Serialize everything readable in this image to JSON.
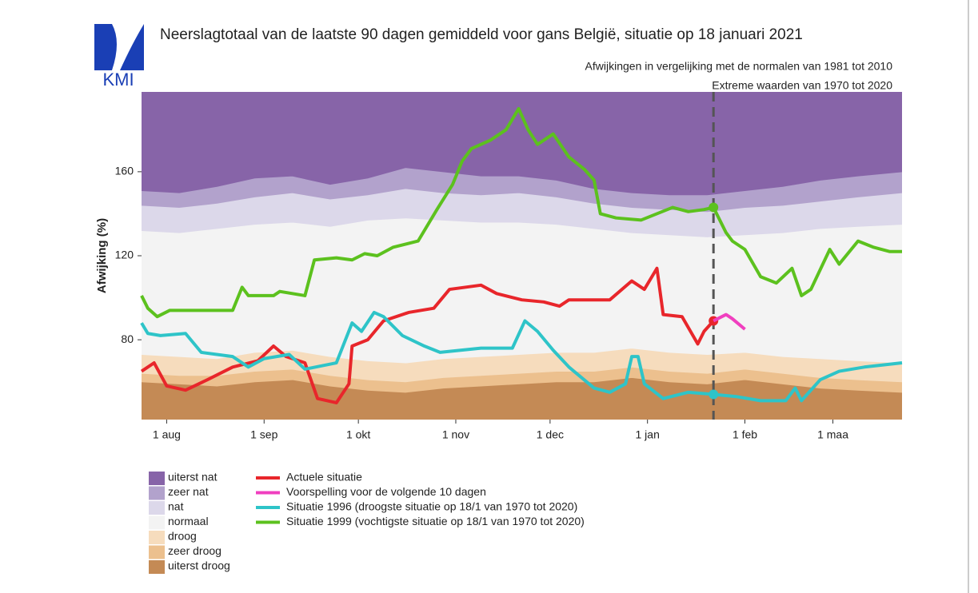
{
  "chart_data": {
    "type": "line",
    "title": "Neerslagtotaal van de laatste 90 dagen gemiddeld voor gans België, situatie op 18 januari 2021",
    "subtitle": [
      "Afwijkingen in vergelijking met de normalen van 1981 tot 2010",
      "Extreme waarden van 1970 tot 2020"
    ],
    "logo": "KMI",
    "y_label": "Afwijking (%)",
    "xlim": [
      -8,
      234
    ],
    "xticks": [
      {
        "value": 0,
        "label": "1 aug"
      },
      {
        "value": 31,
        "label": "1 sep"
      },
      {
        "value": 61,
        "label": "1 okt"
      },
      {
        "value": 92,
        "label": "1 nov"
      },
      {
        "value": 122,
        "label": "1 dec"
      },
      {
        "value": 153,
        "label": "1 jan"
      },
      {
        "value": 184,
        "label": "1 feb"
      },
      {
        "value": 212,
        "label": "1 maa"
      }
    ],
    "ylim": [
      42,
      198
    ],
    "yticks": [
      80,
      120,
      160
    ],
    "reference_x": 174,
    "band_x": [
      -8,
      4,
      16,
      28,
      40,
      52,
      64,
      76,
      88,
      100,
      112,
      124,
      136,
      148,
      160,
      172,
      184,
      196,
      208,
      220,
      234
    ],
    "bands": [
      {
        "name": "uiterst droog",
        "color": "#c48a55"
      },
      {
        "name": "zeer droog",
        "color": "#ecc08e",
        "values": [
          60,
          59,
          58,
          60,
          61,
          58,
          56,
          55,
          57,
          58,
          59,
          60,
          60,
          62,
          60,
          59,
          61,
          59,
          57,
          56,
          55
        ]
      },
      {
        "name": "droog",
        "color": "#f6dcbd",
        "values": [
          64,
          63,
          63,
          65,
          66,
          63,
          61,
          60,
          62,
          63,
          64,
          65,
          65,
          67,
          65,
          64,
          66,
          64,
          62,
          61,
          60
        ]
      },
      {
        "name": "normaal",
        "color": "#f3f3f3",
        "values": [
          73,
          72,
          71,
          74,
          75,
          72,
          70,
          69,
          71,
          72,
          73,
          74,
          74,
          76,
          74,
          73,
          74,
          72,
          71,
          70,
          69
        ]
      },
      {
        "name": "nat",
        "color": "#dcd8ea",
        "values": [
          132,
          131,
          133,
          135,
          136,
          134,
          137,
          138,
          137,
          136,
          136,
          135,
          133,
          131,
          130,
          129,
          130,
          131,
          133,
          134,
          135
        ]
      },
      {
        "name": "zeer nat",
        "color": "#b2a2cc",
        "values": [
          144,
          143,
          145,
          148,
          150,
          147,
          149,
          152,
          150,
          149,
          150,
          148,
          145,
          143,
          142,
          141,
          143,
          144,
          146,
          148,
          150
        ]
      },
      {
        "name": "uiterst nat",
        "color": "#8764a8",
        "values": [
          151,
          150,
          153,
          157,
          158,
          154,
          157,
          162,
          160,
          158,
          158,
          156,
          152,
          150,
          149,
          149,
          151,
          153,
          156,
          158,
          160
        ]
      }
    ],
    "series": [
      {
        "name": "Actuele situatie",
        "color": "#e8262b",
        "x": [
          -8,
          -4,
          0,
          6,
          13,
          21,
          29,
          34,
          38,
          44,
          48,
          54,
          58,
          59,
          64,
          69,
          77,
          85,
          90,
          100,
          105,
          113,
          120,
          125,
          128,
          141,
          148,
          152,
          156,
          158,
          164,
          169,
          171,
          174
        ],
        "values": [
          65,
          69,
          58,
          56,
          61,
          67,
          70,
          77,
          72,
          69,
          52,
          50,
          59,
          77,
          80,
          89,
          93,
          95,
          104,
          106,
          102,
          99,
          98,
          96,
          99,
          99,
          108,
          104,
          114,
          92,
          91,
          78,
          84,
          89
        ]
      },
      {
        "name": "Voorspelling voor de volgende 10 dagen",
        "color": "#f03fbf",
        "x": [
          174,
          178,
          180,
          184
        ],
        "values": [
          89,
          92,
          90,
          85
        ]
      },
      {
        "name": "Situatie 1996 (droogste situatie op 18/1 van 1970 tot 2020)",
        "color": "#2ec4c8",
        "x": [
          -8,
          -6,
          -2,
          6,
          11,
          21,
          26,
          31,
          39,
          44,
          54,
          59,
          62,
          66,
          69,
          75,
          82,
          87,
          100,
          110,
          114,
          118,
          123,
          128,
          136,
          141,
          146,
          148,
          150,
          152,
          158,
          166,
          174,
          181,
          189,
          197,
          200,
          202,
          208,
          214,
          222,
          234
        ],
        "values": [
          88,
          83,
          82,
          83,
          74,
          72,
          67,
          71,
          73,
          66,
          69,
          88,
          84,
          93,
          91,
          82,
          77,
          74,
          76,
          76,
          89,
          84,
          75,
          67,
          57,
          55,
          59,
          72,
          72,
          59,
          52,
          55,
          54,
          53,
          51,
          51,
          57,
          51,
          61,
          65,
          67,
          69
        ]
      },
      {
        "name": "Situatie 1999 (vochtigste situatie op 18/1 van 1970 tot 2020)",
        "color": "#5cc11e",
        "x": [
          -8,
          -6,
          -3,
          1,
          11,
          21,
          24,
          26,
          34,
          36,
          44,
          47,
          54,
          59,
          63,
          67,
          72,
          80,
          86,
          91,
          94,
          97,
          103,
          108,
          112,
          115,
          118,
          123,
          128,
          133,
          136,
          138,
          143,
          151,
          156,
          161,
          166,
          171,
          174,
          178,
          180,
          184,
          189,
          194,
          199,
          202,
          205,
          211,
          214,
          220,
          225,
          230,
          234
        ],
        "values": [
          101,
          95,
          91,
          94,
          94,
          94,
          105,
          101,
          101,
          103,
          101,
          118,
          119,
          118,
          121,
          120,
          124,
          127,
          142,
          154,
          165,
          171,
          175,
          180,
          190,
          180,
          173,
          178,
          167,
          161,
          156,
          140,
          138,
          137,
          140,
          143,
          141,
          142,
          143,
          131,
          127,
          123,
          110,
          107,
          114,
          101,
          104,
          123,
          116,
          127,
          124,
          122,
          122
        ]
      }
    ]
  }
}
